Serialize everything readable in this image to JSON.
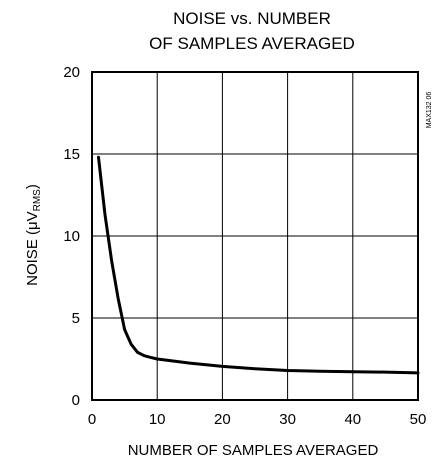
{
  "chart_data": {
    "type": "line",
    "title_line1": "NOISE vs. NUMBER",
    "title_line2": "OF SAMPLES AVERAGED",
    "xlabel": "NUMBER OF SAMPLES AVERAGED",
    "ylabel_prefix": "NOISE (μV",
    "ylabel_sub": "RMS",
    "ylabel_suffix": ")",
    "side_label": "MAX132 06",
    "xlim": [
      0,
      50
    ],
    "ylim": [
      0,
      20
    ],
    "x_ticks": [
      0,
      10,
      20,
      30,
      40,
      50
    ],
    "y_ticks": [
      0,
      5,
      10,
      15,
      20
    ],
    "grid": true,
    "series": [
      {
        "x": [
          1,
          2,
          3,
          4,
          5,
          6,
          7,
          8,
          9,
          10,
          12,
          15,
          20,
          25,
          30,
          35,
          40,
          45,
          50
        ],
        "y": [
          14.8,
          11.3,
          8.5,
          6.2,
          4.3,
          3.4,
          2.9,
          2.7,
          2.6,
          2.5,
          2.4,
          2.25,
          2.05,
          1.9,
          1.8,
          1.75,
          1.72,
          1.7,
          1.65
        ]
      }
    ]
  }
}
